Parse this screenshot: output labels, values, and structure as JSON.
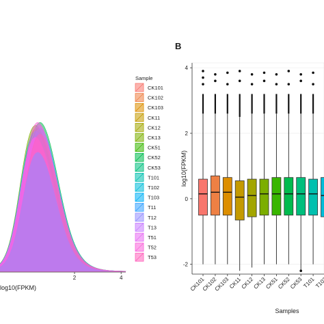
{
  "panel_b_label": "B",
  "chart_data": [
    {
      "type": "area",
      "panel": "A",
      "xlabel": "log10(FPKM)",
      "x_ticks": [
        "2",
        "4"
      ],
      "xlim": [
        -1.2,
        4.2
      ],
      "legend_title": "Sample",
      "legend_position": "right",
      "series": [
        {
          "name": "CK101",
          "color": "#f8766d"
        },
        {
          "name": "CK102",
          "color": "#ee8044"
        },
        {
          "name": "CK103",
          "color": "#dc8e00"
        },
        {
          "name": "CK11",
          "color": "#c49a00"
        },
        {
          "name": "CK12",
          "color": "#a3a500"
        },
        {
          "name": "CK13",
          "color": "#7cae00"
        },
        {
          "name": "CK51",
          "color": "#39b600"
        },
        {
          "name": "CK52",
          "color": "#00bb4e"
        },
        {
          "name": "CK53",
          "color": "#00bf7d"
        },
        {
          "name": "T101",
          "color": "#00c0af"
        },
        {
          "name": "T102",
          "color": "#00bcd8"
        },
        {
          "name": "T103",
          "color": "#00b0f6"
        },
        {
          "name": "T11",
          "color": "#35a2ff"
        },
        {
          "name": "T12",
          "color": "#9590ff"
        },
        {
          "name": "T13",
          "color": "#c77cff"
        },
        {
          "name": "T51",
          "color": "#e76bf3"
        },
        {
          "name": "T52",
          "color": "#fa62db"
        },
        {
          "name": "T53",
          "color": "#ff62bc"
        }
      ]
    },
    {
      "type": "boxplot",
      "panel": "B",
      "xlabel": "Samples",
      "ylabel": "log10(FPKM)",
      "y_ticks": [
        "-2",
        "0",
        "2",
        "4"
      ],
      "ylim": [
        -2.3,
        4.15
      ],
      "categories": [
        "CK101",
        "CK102",
        "CK103",
        "CK11",
        "CK12",
        "CK13",
        "CK51",
        "CK52",
        "CK53",
        "T101",
        "T102",
        "T103"
      ],
      "colors": [
        "#f8766d",
        "#ee8044",
        "#dc8e00",
        "#c49a00",
        "#a3a500",
        "#7cae00",
        "#39b600",
        "#00bb4e",
        "#00bf7d",
        "#00c0af",
        "#00bcd8",
        "#00b0f6"
      ],
      "boxes": [
        {
          "q1": -0.5,
          "median": 0.15,
          "q3": 0.6,
          "whisker_low": -2.0,
          "whisker_high": 2.6,
          "outliers": [
            3.5,
            3.7,
            3.9
          ]
        },
        {
          "q1": -0.5,
          "median": 0.2,
          "q3": 0.7,
          "whisker_low": -2.0,
          "whisker_high": 2.6,
          "outliers": [
            3.6,
            3.8
          ]
        },
        {
          "q1": -0.5,
          "median": 0.2,
          "q3": 0.65,
          "whisker_low": -2.0,
          "whisker_high": 2.6,
          "outliers": [
            3.5,
            3.85
          ]
        },
        {
          "q1": -0.65,
          "median": 0.05,
          "q3": 0.55,
          "whisker_low": -2.2,
          "whisker_high": 2.5,
          "outliers": [
            3.6,
            3.9
          ]
        },
        {
          "q1": -0.55,
          "median": 0.1,
          "q3": 0.6,
          "whisker_low": -2.1,
          "whisker_high": 2.6,
          "outliers": [
            3.5,
            3.8
          ]
        },
        {
          "q1": -0.5,
          "median": 0.15,
          "q3": 0.6,
          "whisker_low": -2.0,
          "whisker_high": 2.6,
          "outliers": [
            3.6,
            3.85
          ]
        },
        {
          "q1": -0.5,
          "median": 0.15,
          "q3": 0.65,
          "whisker_low": -2.0,
          "whisker_high": 2.6,
          "outliers": [
            3.5,
            3.8
          ]
        },
        {
          "q1": -0.5,
          "median": 0.15,
          "q3": 0.65,
          "whisker_low": -2.0,
          "whisker_high": 2.6,
          "outliers": [
            3.5,
            3.9
          ]
        },
        {
          "q1": -0.5,
          "median": 0.15,
          "q3": 0.65,
          "whisker_low": -2.2,
          "whisker_high": 2.6,
          "outliers": [
            3.6,
            3.8
          ]
        },
        {
          "q1": -0.5,
          "median": 0.15,
          "q3": 0.6,
          "whisker_low": -2.0,
          "whisker_high": 2.6,
          "outliers": [
            3.5,
            3.85
          ]
        },
        {
          "q1": -0.55,
          "median": 0.1,
          "q3": 0.65,
          "whisker_low": -2.0,
          "whisker_high": 2.6,
          "outliers": [
            3.5,
            3.8
          ]
        },
        {
          "q1": -0.5,
          "median": 0.15,
          "q3": 0.6,
          "whisker_low": -2.0,
          "whisker_high": 2.6,
          "outliers": [
            3.6
          ]
        }
      ]
    }
  ]
}
